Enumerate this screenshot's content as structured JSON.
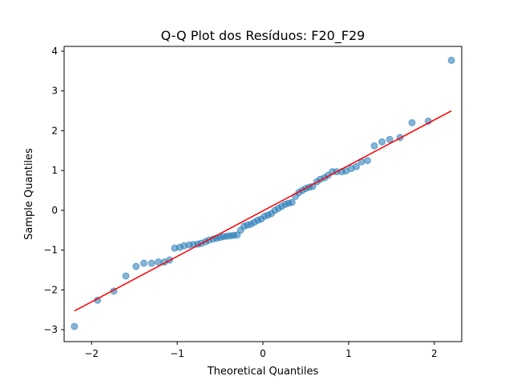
{
  "chart_data": {
    "type": "scatter",
    "title": "Q-Q Plot dos Resíduos: F20_F29",
    "xlabel": "Theoretical Quantiles",
    "ylabel": "Sample Quantiles",
    "xlim": [
      -2.32,
      2.32
    ],
    "ylim": [
      -3.3,
      4.12
    ],
    "xticks": [
      -2,
      -1,
      0,
      1,
      2
    ],
    "yticks": [
      -3,
      -2,
      -1,
      0,
      1,
      2,
      3,
      4
    ],
    "xtick_labels": [
      "−2",
      "−1",
      "0",
      "1",
      "2"
    ],
    "ytick_labels": [
      "−3",
      "−2",
      "−1",
      "0",
      "1",
      "2",
      "3",
      "4"
    ],
    "grid": false,
    "colors": {
      "points": "#1f77b4",
      "line": "#ff0000"
    },
    "reference_line": {
      "x": [
        -2.2,
        2.2
      ],
      "y": [
        -2.53,
        2.5
      ]
    },
    "points": [
      [
        -2.2,
        -2.92
      ],
      [
        -1.93,
        -2.26
      ],
      [
        -1.74,
        -2.03
      ],
      [
        -1.6,
        -1.65
      ],
      [
        -1.48,
        -1.41
      ],
      [
        -1.39,
        -1.33
      ],
      [
        -1.3,
        -1.33
      ],
      [
        -1.22,
        -1.3
      ],
      [
        -1.15,
        -1.3
      ],
      [
        -1.09,
        -1.25
      ],
      [
        -1.03,
        -0.95
      ],
      [
        -0.97,
        -0.93
      ],
      [
        -0.92,
        -0.89
      ],
      [
        -0.86,
        -0.87
      ],
      [
        -0.81,
        -0.86
      ],
      [
        -0.76,
        -0.85
      ],
      [
        -0.72,
        -0.83
      ],
      [
        -0.67,
        -0.79
      ],
      [
        -0.63,
        -0.75
      ],
      [
        -0.58,
        -0.72
      ],
      [
        -0.54,
        -0.7
      ],
      [
        -0.5,
        -0.68
      ],
      [
        -0.46,
        -0.66
      ],
      [
        -0.42,
        -0.65
      ],
      [
        -0.38,
        -0.64
      ],
      [
        -0.34,
        -0.63
      ],
      [
        -0.3,
        -0.62
      ],
      [
        -0.26,
        -0.5
      ],
      [
        -0.22,
        -0.4
      ],
      [
        -0.18,
        -0.37
      ],
      [
        -0.14,
        -0.35
      ],
      [
        -0.1,
        -0.3
      ],
      [
        -0.06,
        -0.25
      ],
      [
        -0.02,
        -0.22
      ],
      [
        0.02,
        -0.15
      ],
      [
        0.06,
        -0.12
      ],
      [
        0.1,
        -0.08
      ],
      [
        0.14,
        0.0
      ],
      [
        0.18,
        0.05
      ],
      [
        0.22,
        0.1
      ],
      [
        0.26,
        0.15
      ],
      [
        0.3,
        0.18
      ],
      [
        0.34,
        0.2
      ],
      [
        0.38,
        0.35
      ],
      [
        0.42,
        0.45
      ],
      [
        0.46,
        0.5
      ],
      [
        0.5,
        0.55
      ],
      [
        0.54,
        0.58
      ],
      [
        0.58,
        0.6
      ],
      [
        0.63,
        0.72
      ],
      [
        0.67,
        0.78
      ],
      [
        0.72,
        0.82
      ],
      [
        0.76,
        0.88
      ],
      [
        0.81,
        0.97
      ],
      [
        0.86,
        0.97
      ],
      [
        0.92,
        0.97
      ],
      [
        0.97,
        0.99
      ],
      [
        1.03,
        1.05
      ],
      [
        1.09,
        1.1
      ],
      [
        1.15,
        1.22
      ],
      [
        1.22,
        1.25
      ],
      [
        1.3,
        1.62
      ],
      [
        1.39,
        1.72
      ],
      [
        1.48,
        1.78
      ],
      [
        1.6,
        1.83
      ],
      [
        1.74,
        2.2
      ],
      [
        1.93,
        2.24
      ],
      [
        2.2,
        3.77
      ]
    ]
  }
}
